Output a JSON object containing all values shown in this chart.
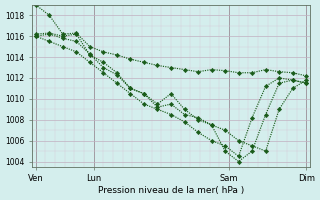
{
  "xlabel": "Pression niveau de la mer( hPa )",
  "bg_color": "#d4eeed",
  "grid_color_major": "#c0b0c0",
  "grid_color_minor": "#d8c8d8",
  "line_color": "#1a5c1a",
  "ylim": [
    1003.5,
    1019.0
  ],
  "yticks": [
    1004,
    1006,
    1008,
    1010,
    1012,
    1014,
    1016,
    1018
  ],
  "xtick_labels": [
    "Ven",
    "Lun",
    "Sam",
    "Dim"
  ],
  "xtick_positions": [
    0,
    3,
    10,
    14
  ],
  "vline_positions": [
    0,
    3,
    10,
    14
  ],
  "series": [
    [
      1019.0,
      1018.0,
      1016.2,
      1016.3,
      1015.0,
      1014.5,
      1014.2,
      1013.8,
      1013.5,
      1013.2,
      1013.0,
      1012.8,
      1012.6,
      1012.8,
      1012.7,
      1012.5,
      1012.5,
      1012.8,
      1012.6,
      1012.5,
      1012.2
    ],
    [
      1016.0,
      1016.2,
      1015.8,
      1015.5,
      1014.3,
      1013.0,
      1012.3,
      1011.0,
      1010.5,
      1009.5,
      1010.5,
      1009.0,
      1008.0,
      1007.5,
      1005.0,
      1004.0,
      1005.0,
      1008.5,
      1011.5,
      1011.8,
      1011.5
    ],
    [
      1016.2,
      1016.3,
      1016.0,
      1016.2,
      1014.2,
      1013.5,
      1012.5,
      1011.0,
      1010.5,
      1009.2,
      1009.5,
      1008.5,
      1008.2,
      1007.5,
      1007.0,
      1006.0,
      1005.5,
      1005.0,
      1009.0,
      1011.0,
      1011.8
    ],
    [
      1016.0,
      1015.5,
      1015.0,
      1014.5,
      1013.5,
      1012.5,
      1011.5,
      1010.5,
      1009.5,
      1009.0,
      1008.5,
      1007.8,
      1006.8,
      1006.0,
      1005.5,
      1004.5,
      1008.2,
      1011.2,
      1012.0,
      1011.8,
      1011.5
    ]
  ]
}
